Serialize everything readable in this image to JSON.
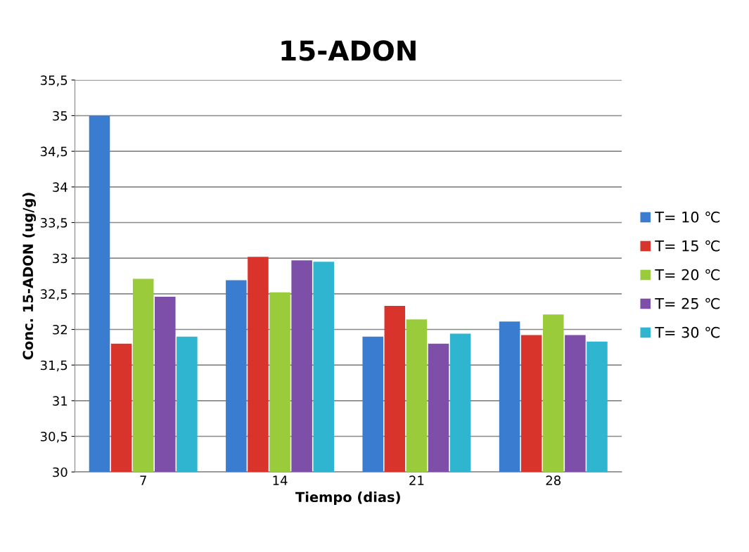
{
  "chart_data": {
    "type": "bar",
    "title": "15-ADON",
    "xlabel": "Tiempo (dias)",
    "ylabel": "Conc. 15-ADON (ug/g)",
    "categories": [
      "7",
      "14",
      "21",
      "28"
    ],
    "series": [
      {
        "name": "T= 10 ℃",
        "color": "#3a7dd0",
        "values": [
          35.0,
          32.69,
          31.9,
          32.11
        ]
      },
      {
        "name": "T= 15 ℃",
        "color": "#d8342c",
        "values": [
          31.8,
          33.02,
          32.33,
          31.92
        ]
      },
      {
        "name": "T= 20 ℃",
        "color": "#9acb3a",
        "values": [
          32.71,
          32.52,
          32.14,
          32.21
        ]
      },
      {
        "name": "T= 25 ℃",
        "color": "#7d4fa8",
        "values": [
          32.46,
          32.97,
          31.8,
          31.92
        ]
      },
      {
        "name": "T= 30 ℃",
        "color": "#2fb5d0",
        "values": [
          31.9,
          32.95,
          31.94,
          31.83
        ]
      }
    ],
    "ylim": [
      30,
      35.5
    ],
    "yticks": [
      30,
      {
        "value": 30.5,
        "label": "30,5"
      },
      31,
      {
        "value": 31.5,
        "label": "31,5"
      },
      32,
      {
        "value": 32.5,
        "label": "32,5"
      },
      33,
      {
        "value": 33.5,
        "label": "33,5"
      },
      34,
      {
        "value": 34.5,
        "label": "34,5"
      },
      35,
      {
        "value": 35.5,
        "label": "35,5"
      }
    ],
    "grid": "y",
    "legend": "right"
  }
}
